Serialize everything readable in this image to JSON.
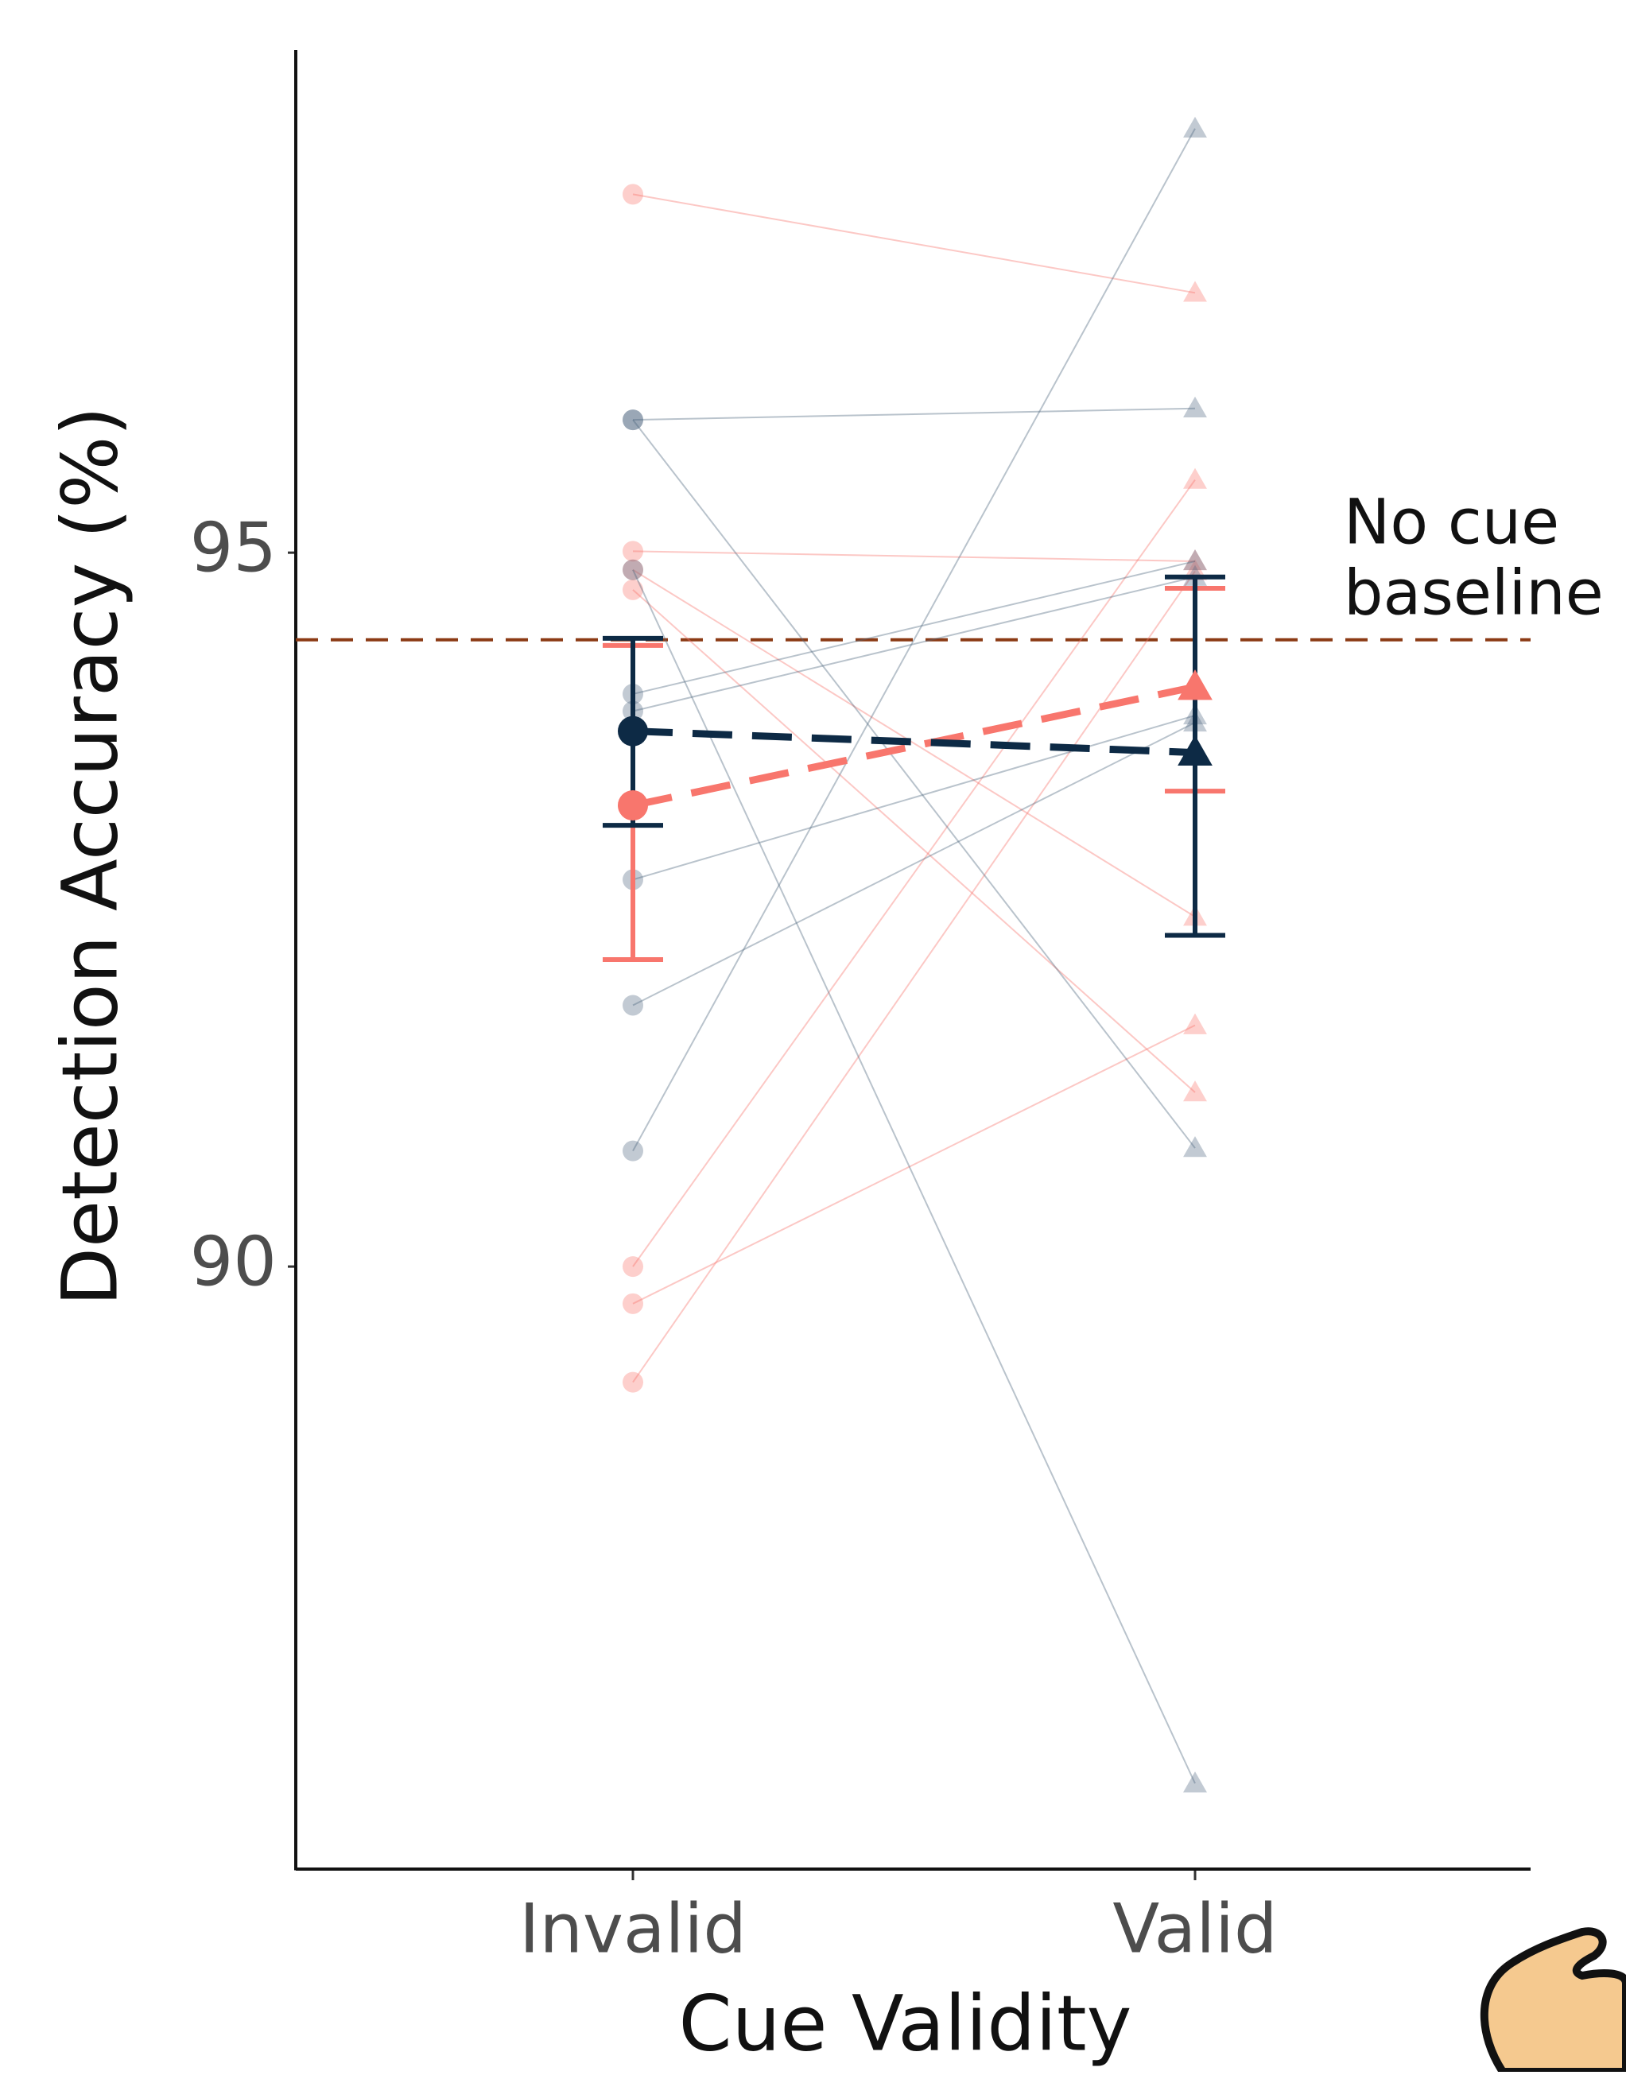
{
  "chart_data": {
    "type": "line",
    "x_label": "Cue Validity",
    "y_label": "Detection Accuracy (%)",
    "categories": [
      "Invalid",
      "Valid"
    ],
    "markers": [
      "circle",
      "triangle"
    ],
    "ylim": [
      85.78,
      98.52
    ],
    "yticks": [
      90,
      95
    ],
    "hline": {
      "value": 94.39,
      "color": "#8b3a14",
      "label": [
        "No cue",
        "baseline"
      ]
    },
    "individual": [
      {
        "color": "#f8766d",
        "values": [
          97.51,
          96.82
        ]
      },
      {
        "color": "#f8766d",
        "values": [
          95.01,
          94.94
        ]
      },
      {
        "color": "#f8766d",
        "values": [
          94.88,
          92.45
        ]
      },
      {
        "color": "#f8766d",
        "values": [
          94.74,
          91.22
        ]
      },
      {
        "color": "#f8766d",
        "values": [
          90.0,
          95.51
        ]
      },
      {
        "color": "#f8766d",
        "values": [
          89.74,
          91.69
        ]
      },
      {
        "color": "#f8766d",
        "values": [
          89.19,
          94.87
        ]
      },
      {
        "color": "#4f6880",
        "values": [
          95.93,
          96.01
        ]
      },
      {
        "color": "#4f6880",
        "values": [
          95.93,
          90.83
        ]
      },
      {
        "color": "#4f6880",
        "values": [
          94.88,
          86.38
        ]
      },
      {
        "color": "#4f6880",
        "values": [
          94.01,
          94.94
        ]
      },
      {
        "color": "#4f6880",
        "values": [
          93.89,
          94.83
        ]
      },
      {
        "color": "#4f6880",
        "values": [
          92.71,
          93.86
        ]
      },
      {
        "color": "#4f6880",
        "values": [
          91.83,
          93.81
        ]
      },
      {
        "color": "#4f6880",
        "values": [
          90.81,
          97.97
        ]
      }
    ],
    "series": [
      {
        "color": "#f8766d",
        "values": [
          93.23,
          94.06
        ],
        "ci": [
          [
            92.15,
            94.35
          ],
          [
            93.33,
            94.75
          ]
        ]
      },
      {
        "color": "#0d2a45",
        "values": [
          93.75,
          93.6
        ],
        "ci": [
          [
            93.09,
            94.4
          ],
          [
            92.32,
            94.83
          ]
        ]
      }
    ]
  }
}
